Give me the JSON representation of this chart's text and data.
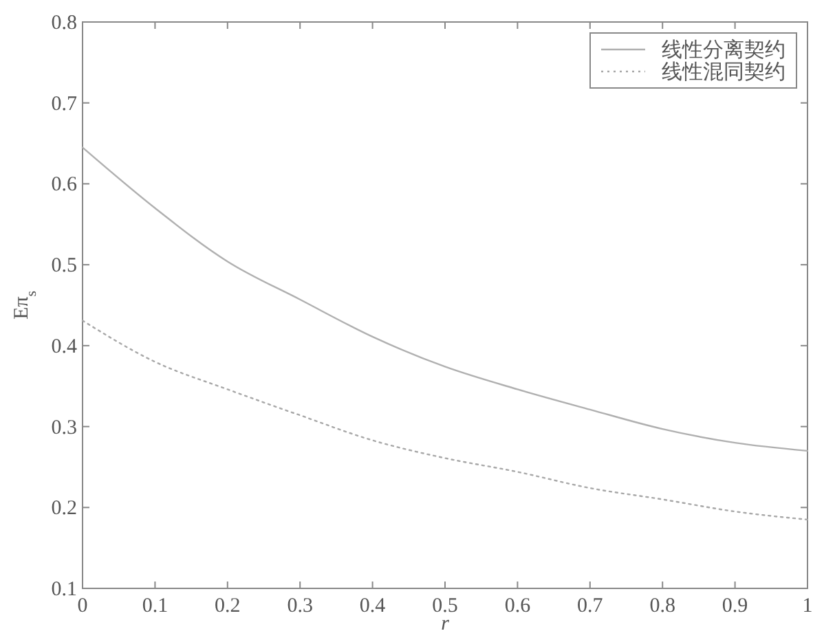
{
  "chart_data": {
    "type": "line",
    "xlabel": "r",
    "ylabel": "Eπ$_{s}$",
    "xlim": [
      0,
      1
    ],
    "ylim": [
      0.1,
      0.8
    ],
    "xticks": [
      0,
      0.1,
      0.2,
      0.3,
      0.4,
      0.5,
      0.6,
      0.7,
      0.8,
      0.9,
      {
        "value": 1,
        "label": "1"
      }
    ],
    "yticks": [
      0.1,
      0.2,
      0.3,
      0.4,
      0.5,
      0.6,
      0.7,
      0.8
    ],
    "x": [
      0,
      0.1,
      0.2,
      0.3,
      0.4,
      0.5,
      0.6,
      0.7,
      0.8,
      0.9,
      1
    ],
    "series": [
      {
        "name": "线性分离契约",
        "color": "#b0b0b0",
        "line_style": "solid",
        "values": [
          0.645,
          0.57,
          0.504,
          0.457,
          0.411,
          0.374,
          0.346,
          0.321,
          0.297,
          0.28,
          0.27
        ]
      },
      {
        "name": "线性混同契约",
        "color": "#a8a8a8",
        "line_style": "dotted",
        "values": [
          0.431,
          0.38,
          0.346,
          0.314,
          0.283,
          0.261,
          0.244,
          0.224,
          0.21,
          0.195,
          0.185
        ]
      }
    ],
    "legend": "top right",
    "grid": false,
    "marker": "none"
  }
}
